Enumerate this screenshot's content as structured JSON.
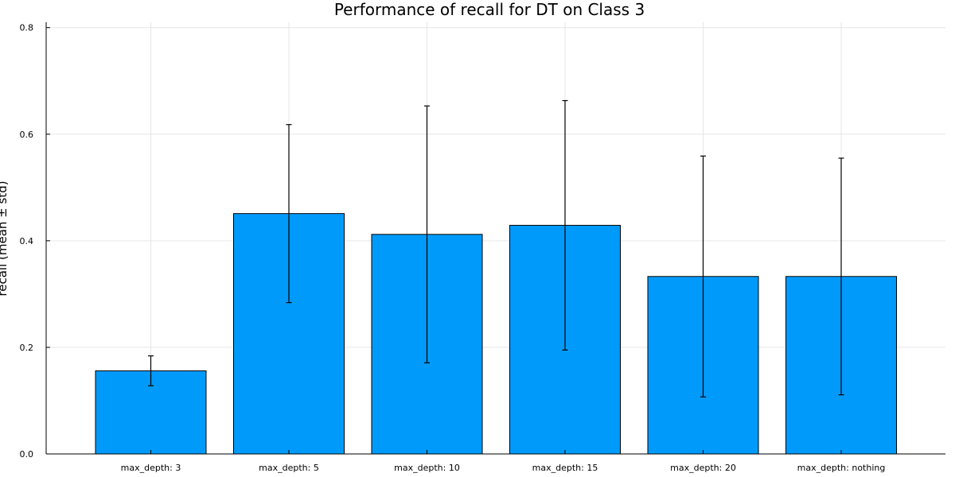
{
  "chart_data": {
    "type": "bar",
    "title": "Performance of recall for DT on Class 3",
    "xlabel": "",
    "ylabel": "recall (mean ± std)",
    "categories": [
      "max_depth: 3",
      "max_depth: 5",
      "max_depth: 10",
      "max_depth: 15",
      "max_depth: 20",
      "max_depth: nothing"
    ],
    "values": [
      0.156,
      0.451,
      0.412,
      0.429,
      0.333,
      0.333
    ],
    "errors": [
      0.028,
      0.167,
      0.241,
      0.234,
      0.226,
      0.222
    ],
    "ylim": [
      0,
      0.81
    ],
    "yticks": [
      0.0,
      0.2,
      0.4,
      0.6,
      0.8
    ],
    "ytick_labels": [
      "0.0",
      "0.2",
      "0.4",
      "0.6",
      "0.8"
    ],
    "grid": true,
    "legend": "none",
    "bar_color": "#009AFA",
    "errorbar_color": "#000000"
  }
}
